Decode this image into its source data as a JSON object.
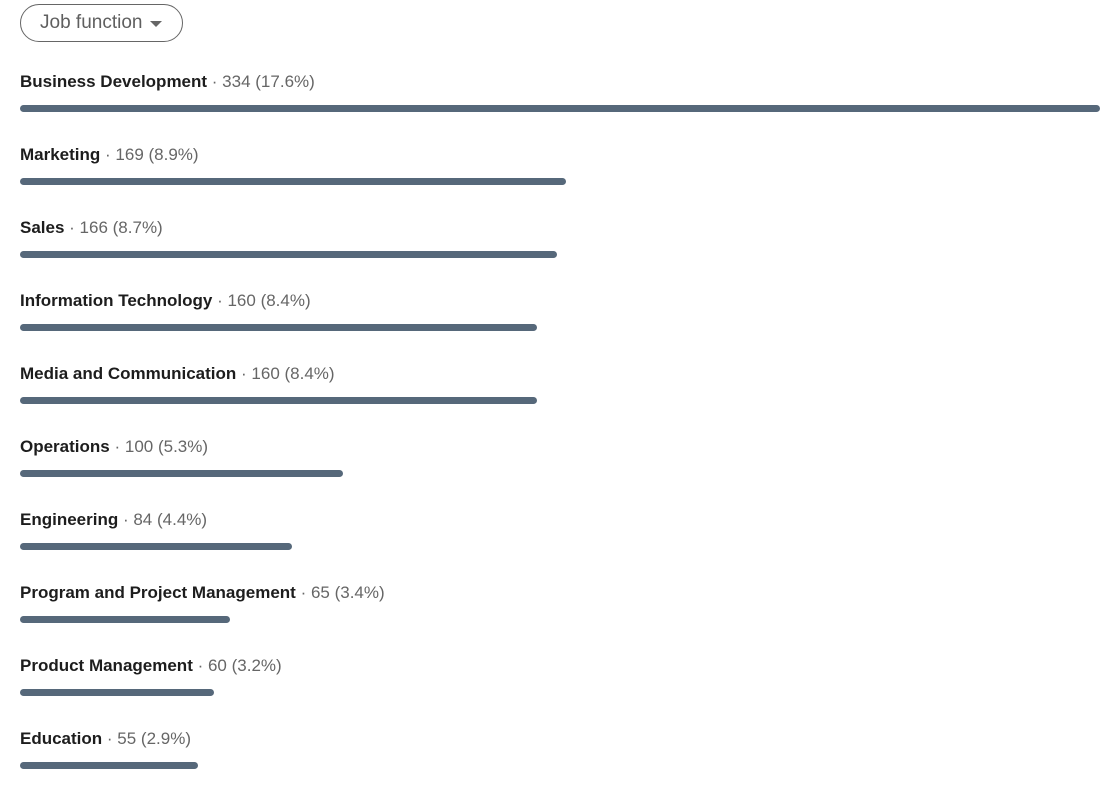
{
  "filter": {
    "label": "Job function",
    "icon": "caret-down-icon"
  },
  "bar_color": "#56687a",
  "chart_data": {
    "type": "bar",
    "orientation": "horizontal",
    "categories": [
      "Business Development",
      "Marketing",
      "Sales",
      "Information Technology",
      "Media and Communication",
      "Operations",
      "Engineering",
      "Program and Project Management",
      "Product Management",
      "Education"
    ],
    "values": [
      334,
      169,
      166,
      160,
      160,
      100,
      84,
      65,
      60,
      55
    ],
    "percents": [
      "17.6%",
      "8.9%",
      "8.7%",
      "8.4%",
      "8.4%",
      "5.3%",
      "4.4%",
      "3.4%",
      "3.2%",
      "2.9%"
    ],
    "separator": "·"
  }
}
